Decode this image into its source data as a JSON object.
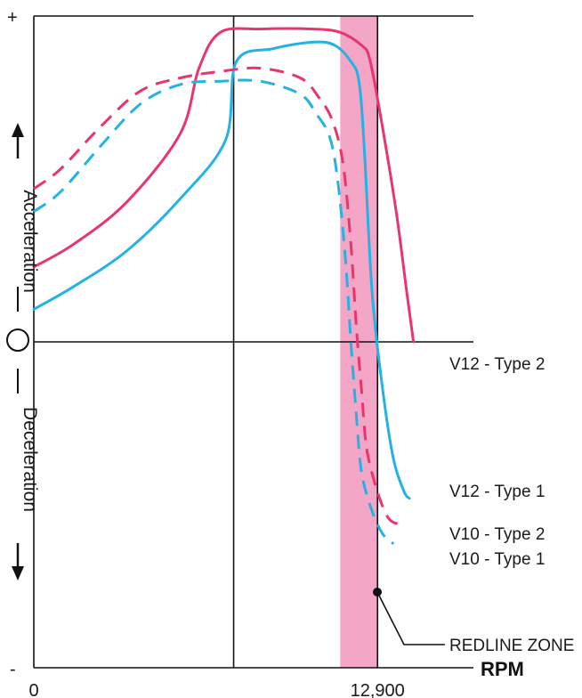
{
  "chart_data": {
    "type": "line",
    "title": "",
    "xlabel": "RPM",
    "ylabel": {
      "positive": "Acceleration",
      "negative": "Deceleration",
      "zero_marker": "○",
      "plus": "+",
      "minus": "-"
    },
    "x_ticks": [
      {
        "value": 0,
        "label": "0"
      },
      {
        "value": 12900,
        "label": "12,900"
      }
    ],
    "xlim": [
      0,
      16500
    ],
    "ylim": [
      -100,
      100
    ],
    "grid": {
      "vertical_at": [
        7500,
        12900
      ],
      "horizontal_at": [
        0,
        100
      ]
    },
    "redline_zone": {
      "label": "REDLINE ZONE",
      "x_range": [
        11500,
        12900
      ],
      "color": "#f4a6c6"
    },
    "series": [
      {
        "name": "V12 - Type 2",
        "color": "#e8356e",
        "dash": false,
        "x": [
          0,
          1500,
          3500,
          5500,
          6200,
          7000,
          8500,
          10500,
          11500,
          12300,
          12600,
          13000,
          13600,
          14000,
          14250
        ],
        "y": [
          23,
          30,
          43,
          64,
          84,
          95,
          96,
          96,
          95,
          91,
          87,
          70,
          40,
          15,
          0
        ]
      },
      {
        "name": "V12 - Type 1",
        "color": "#24b2e4",
        "dash": false,
        "x": [
          0,
          1500,
          3500,
          5500,
          7200,
          7600,
          9000,
          10500,
          11300,
          11900,
          12200,
          12400,
          12700,
          13100,
          13500,
          13900,
          14100
        ],
        "y": [
          10,
          17,
          28,
          44,
          62,
          86,
          90,
          92,
          91,
          86,
          80,
          60,
          15,
          -15,
          -36,
          -46,
          -48
        ]
      },
      {
        "name": "V10 - Type 2",
        "color": "#e8356e",
        "dash": true,
        "x": [
          0,
          1000,
          2500,
          4000,
          5500,
          7000,
          8500,
          10000,
          10700,
          11200,
          11600,
          11900,
          12100,
          12300,
          12500,
          12900,
          13300,
          13700
        ],
        "y": [
          47,
          53,
          66,
          77,
          81,
          83,
          84,
          81,
          75,
          68,
          55,
          30,
          5,
          -15,
          -33,
          -46,
          -54,
          -56
        ]
      },
      {
        "name": "V10 - Type 1",
        "color": "#24b2e4",
        "dash": true,
        "x": [
          0,
          1000,
          2500,
          4000,
          5500,
          7000,
          8500,
          10000,
          10600,
          11100,
          11400,
          11700,
          11900,
          12100,
          12300,
          12700,
          13100,
          13500
        ],
        "y": [
          40,
          46,
          60,
          73,
          79,
          80,
          80,
          76,
          70,
          63,
          50,
          25,
          0,
          -22,
          -40,
          -52,
          -59,
          -62
        ]
      }
    ]
  }
}
